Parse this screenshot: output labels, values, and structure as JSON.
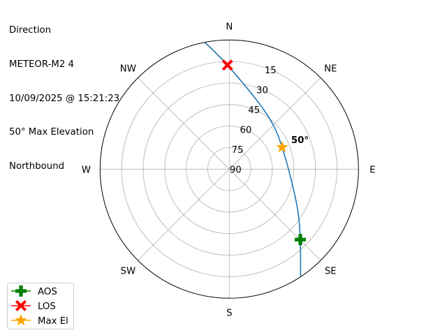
{
  "title_lines": [
    "Direction",
    "METEOR-M2 4",
    "10/09/2025 @ 15:21:23",
    "50° Max Elevation",
    "Northbound"
  ],
  "chart_data": {
    "type": "polar-line",
    "angular_axis": {
      "direction": "clockwise",
      "zero": "N",
      "labels": [
        "N",
        "NE",
        "E",
        "SE",
        "S",
        "SW",
        "W",
        "NW"
      ]
    },
    "radial_axis": {
      "quantity": "elevation",
      "range": [
        90,
        0
      ],
      "tick_labels": [
        "90",
        "75",
        "60",
        "45",
        "30",
        "15"
      ],
      "ticks": [
        90,
        75,
        60,
        45,
        30,
        15
      ]
    },
    "grid": true,
    "track": {
      "color": "#1f77b4",
      "points": [
        {
          "az": 146.5,
          "el": 0
        },
        {
          "az": 134.8,
          "el": 20.3
        },
        {
          "az": 121.8,
          "el": 33.7
        },
        {
          "az": 99.3,
          "el": 46.4
        },
        {
          "az": 67.5,
          "el": 50.2
        },
        {
          "az": 45.5,
          "el": 46.8
        },
        {
          "az": 23.6,
          "el": 39.3
        },
        {
          "az": 359.0,
          "el": 17.5
        },
        {
          "az": 349.1,
          "el": 0
        }
      ]
    },
    "markers": [
      {
        "name": "AOS",
        "az": 134.8,
        "el": 20.3,
        "color": "#008000",
        "shape": "plus"
      },
      {
        "name": "LOS",
        "az": 359.0,
        "el": 17.5,
        "color": "#ff0000",
        "shape": "x"
      },
      {
        "name": "Max El",
        "az": 67.5,
        "el": 50.2,
        "color": "#ffa500",
        "shape": "star"
      }
    ],
    "annotation": {
      "text": "50°",
      "az": 67.5,
      "el": 50.2
    },
    "legend": {
      "placement": "lower-left",
      "entries": [
        "AOS",
        "LOS",
        "Max El"
      ]
    }
  }
}
